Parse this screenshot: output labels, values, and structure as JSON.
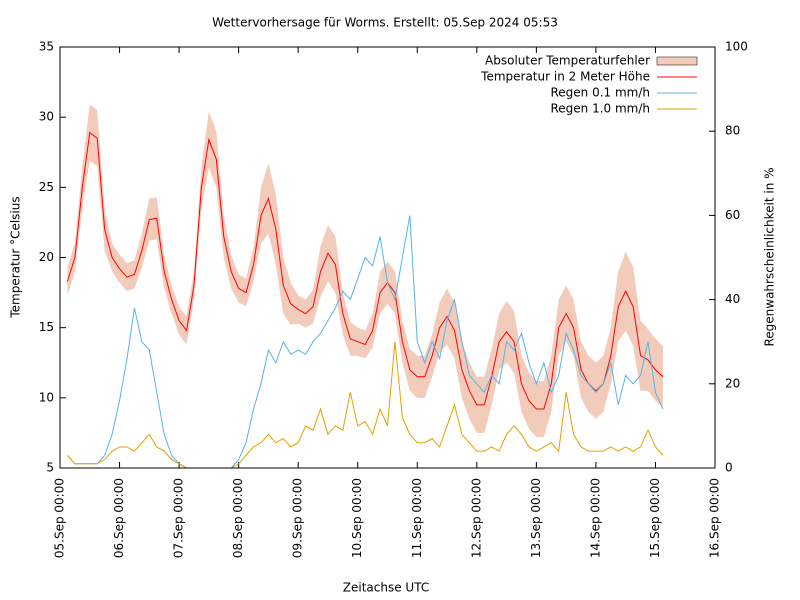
{
  "chart_data": {
    "type": "line",
    "title": "Wettervorhersage für Worms. Erstellt: 05.Sep 2024 05:53",
    "xlabel": "Zeitachse UTC",
    "ylabel": "Temperatur °Celsius",
    "y2label": "Regenwahrscheinlichkeit in %",
    "xlim": [
      "05.Sep 00:00",
      "16.Sep 00:00"
    ],
    "xticks": [
      "05.Sep 00:00",
      "06.Sep 00:00",
      "07.Sep 00:00",
      "08.Sep 00:00",
      "09.Sep 00:00",
      "10.Sep 00:00",
      "11.Sep 00:00",
      "12.Sep 00:00",
      "13.Sep 00:00",
      "14.Sep 00:00",
      "15.Sep 00:00",
      "16.Sep 00:00"
    ],
    "ylim": [
      5,
      35
    ],
    "yticks": [
      5,
      10,
      15,
      20,
      25,
      30,
      35
    ],
    "y2lim": [
      0,
      100
    ],
    "y2ticks": [
      0,
      20,
      40,
      60,
      80,
      100
    ],
    "legend": "top-right",
    "x": [
      "05.Sep 03:00",
      "05.Sep 06:00",
      "05.Sep 09:00",
      "05.Sep 12:00",
      "05.Sep 15:00",
      "05.Sep 18:00",
      "05.Sep 21:00",
      "06.Sep 00:00",
      "06.Sep 03:00",
      "06.Sep 06:00",
      "06.Sep 09:00",
      "06.Sep 12:00",
      "06.Sep 15:00",
      "06.Sep 18:00",
      "06.Sep 21:00",
      "07.Sep 00:00",
      "07.Sep 03:00",
      "07.Sep 06:00",
      "07.Sep 09:00",
      "07.Sep 12:00",
      "07.Sep 15:00",
      "07.Sep 18:00",
      "07.Sep 21:00",
      "08.Sep 00:00",
      "08.Sep 03:00",
      "08.Sep 06:00",
      "08.Sep 09:00",
      "08.Sep 12:00",
      "08.Sep 15:00",
      "08.Sep 18:00",
      "08.Sep 21:00",
      "09.Sep 00:00",
      "09.Sep 03:00",
      "09.Sep 06:00",
      "09.Sep 09:00",
      "09.Sep 12:00",
      "09.Sep 15:00",
      "09.Sep 18:00",
      "09.Sep 21:00",
      "10.Sep 00:00",
      "10.Sep 03:00",
      "10.Sep 06:00",
      "10.Sep 09:00",
      "10.Sep 12:00",
      "10.Sep 15:00",
      "10.Sep 18:00",
      "10.Sep 21:00",
      "11.Sep 00:00",
      "11.Sep 03:00",
      "11.Sep 06:00",
      "11.Sep 09:00",
      "11.Sep 12:00",
      "11.Sep 15:00",
      "11.Sep 18:00",
      "11.Sep 21:00",
      "12.Sep 00:00",
      "12.Sep 03:00",
      "12.Sep 06:00",
      "12.Sep 09:00",
      "12.Sep 12:00",
      "12.Sep 15:00",
      "12.Sep 18:00",
      "12.Sep 21:00",
      "13.Sep 00:00",
      "13.Sep 03:00",
      "13.Sep 06:00",
      "13.Sep 09:00",
      "13.Sep 12:00",
      "13.Sep 15:00",
      "13.Sep 18:00",
      "13.Sep 21:00",
      "14.Sep 00:00",
      "14.Sep 03:00",
      "14.Sep 06:00",
      "14.Sep 09:00",
      "14.Sep 12:00",
      "14.Sep 15:00",
      "14.Sep 18:00",
      "14.Sep 21:00",
      "15.Sep 00:00",
      "15.Sep 03:00"
    ],
    "series": [
      {
        "name": "Absoluter Temperaturfehler",
        "style": "band",
        "color": "#f2cbbb",
        "values": [
          1,
          1,
          1.5,
          2,
          2,
          1.5,
          1,
          1,
          1,
          1,
          1.2,
          1.5,
          1.5,
          1.2,
          1,
          1,
          1,
          1,
          1.5,
          2,
          2,
          1.5,
          1.2,
          1,
          1,
          1.2,
          2,
          2.5,
          2.5,
          2,
          1.5,
          1,
          1,
          1.2,
          1.8,
          2,
          2,
          1.5,
          1.2,
          1,
          1,
          1.2,
          1.5,
          1.5,
          1.5,
          1.5,
          1.5,
          1.5,
          1.5,
          1.5,
          1.8,
          2,
          2,
          2,
          2,
          2,
          2,
          2,
          2,
          2.2,
          2.2,
          2,
          2,
          2,
          2,
          2,
          2,
          2,
          2,
          2,
          2,
          2,
          2,
          2,
          2.5,
          2.8,
          2.8,
          2.5,
          2.2,
          2.2,
          2.2
        ]
      },
      {
        "name": "Temperatur in 2 Meter Höhe",
        "color": "#ff0000",
        "values": [
          18.3,
          20,
          25,
          28.9,
          28.5,
          22,
          20,
          19.2,
          18.6,
          18.8,
          20.5,
          22.7,
          22.8,
          19,
          17,
          15.5,
          14.8,
          18,
          25,
          28.4,
          27,
          21.5,
          19,
          17.8,
          17.5,
          19.5,
          23,
          24.2,
          22,
          18,
          16.7,
          16.3,
          16,
          16.5,
          19,
          20.3,
          19.5,
          16,
          14.2,
          14,
          13.8,
          14.8,
          17.5,
          18.2,
          17.5,
          14,
          12,
          11.5,
          11.5,
          13,
          15,
          15.8,
          14.8,
          12,
          10.5,
          9.5,
          9.5,
          11.5,
          14,
          14.7,
          14,
          11,
          9.8,
          9.2,
          9.2,
          11,
          15,
          16,
          15,
          12,
          11,
          10.5,
          11,
          13,
          16.5,
          17.6,
          16.5,
          13,
          12.7,
          12,
          11.5
        ]
      },
      {
        "name": "Regen 0.1 mm/h",
        "color": "#56b4e9",
        "axis": "y2",
        "values": [
          3,
          1,
          1,
          1,
          1,
          3,
          8,
          16,
          26,
          38,
          30,
          28,
          18,
          8,
          3,
          1,
          0,
          0,
          0,
          0,
          0,
          0,
          0,
          2,
          6,
          14,
          20,
          28,
          25,
          30,
          27,
          28,
          27,
          30,
          32,
          35,
          38,
          42,
          40,
          45,
          50,
          48,
          55,
          44,
          40,
          50,
          60,
          30,
          25,
          30,
          26,
          35,
          40,
          30,
          22,
          20,
          18,
          22,
          20,
          30,
          28,
          32,
          25,
          20,
          25,
          18,
          22,
          32,
          28,
          22,
          20,
          18,
          20,
          25,
          15,
          22,
          20,
          22,
          30,
          18,
          14
        ]
      },
      {
        "name": "Regen 1.0 mm/h",
        "color": "#e69f00",
        "axis": "y2",
        "values": [
          3,
          1,
          1,
          1,
          1,
          2,
          4,
          5,
          5,
          4,
          6,
          8,
          5,
          4,
          2,
          1,
          0,
          0,
          0,
          0,
          0,
          0,
          0,
          1,
          3,
          5,
          6,
          8,
          6,
          7,
          5,
          6,
          10,
          9,
          14,
          8,
          10,
          9,
          18,
          10,
          11,
          8,
          14,
          10,
          30,
          12,
          8,
          6,
          6,
          7,
          5,
          10,
          15,
          8,
          6,
          4,
          4,
          5,
          4,
          8,
          10,
          8,
          5,
          4,
          5,
          6,
          4,
          18,
          8,
          5,
          4,
          4,
          4,
          5,
          4,
          5,
          4,
          5,
          9,
          5,
          3
        ]
      }
    ]
  }
}
